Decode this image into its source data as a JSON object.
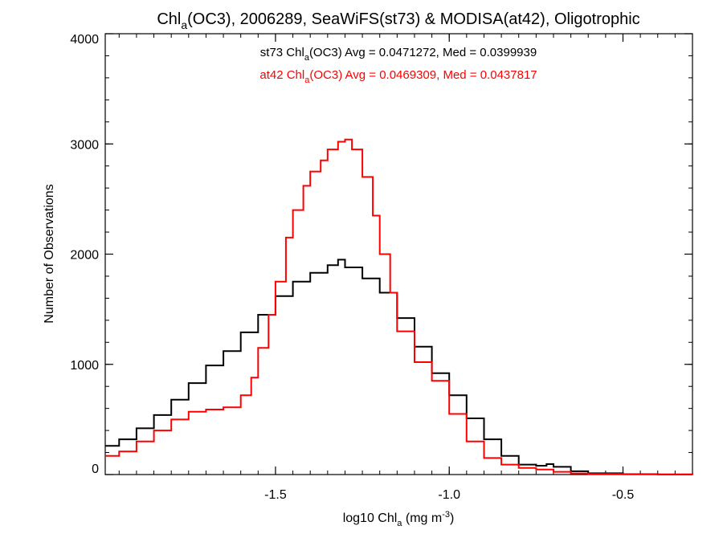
{
  "chart_data": {
    "type": "line",
    "step": true,
    "title": {
      "prefix": "Chl",
      "sub": "a",
      "rest": "(OC3), 2006289, SeaWiFS(st73) & MODISA(at42), Oligotrophic"
    },
    "xlabel": {
      "prefix": "log10 Chl",
      "sub": "a",
      "mid": " (mg m",
      "sup": "-3",
      "end": ")"
    },
    "ylabel": "Number of Observations",
    "xlim": [
      -1.99,
      -0.3
    ],
    "ylim": [
      0,
      4000
    ],
    "xticks": [
      -1.5,
      -1.0,
      -0.5
    ],
    "xtick_labels": [
      "-1.5",
      "-1.0",
      "-0.5"
    ],
    "yticks": [
      0,
      1000,
      2000,
      3000,
      4000
    ],
    "ytick_labels": [
      "0",
      "1000",
      "2000",
      "3000",
      "4000"
    ],
    "x_minor_step": 0.05,
    "y_minor_step": 200,
    "grid": false,
    "legend_position": "top-center",
    "series": [
      {
        "name": "st73",
        "color": "#000000",
        "stats": {
          "prefix": "st73 Chl",
          "sub": "a",
          "rest": "(OC3) Avg = 0.0471272, Med = 0.0399939"
        },
        "points": [
          [
            -1.99,
            260
          ],
          [
            -1.95,
            320
          ],
          [
            -1.9,
            420
          ],
          [
            -1.85,
            540
          ],
          [
            -1.8,
            680
          ],
          [
            -1.75,
            830
          ],
          [
            -1.7,
            990
          ],
          [
            -1.65,
            1120
          ],
          [
            -1.6,
            1290
          ],
          [
            -1.55,
            1450
          ],
          [
            -1.5,
            1620
          ],
          [
            -1.45,
            1750
          ],
          [
            -1.4,
            1830
          ],
          [
            -1.35,
            1900
          ],
          [
            -1.32,
            1950
          ],
          [
            -1.3,
            1880
          ],
          [
            -1.25,
            1780
          ],
          [
            -1.2,
            1650
          ],
          [
            -1.15,
            1420
          ],
          [
            -1.1,
            1160
          ],
          [
            -1.05,
            920
          ],
          [
            -1.0,
            720
          ],
          [
            -0.95,
            510
          ],
          [
            -0.9,
            320
          ],
          [
            -0.85,
            170
          ],
          [
            -0.8,
            90
          ],
          [
            -0.75,
            80
          ],
          [
            -0.72,
            95
          ],
          [
            -0.7,
            70
          ],
          [
            -0.65,
            30
          ],
          [
            -0.6,
            12
          ],
          [
            -0.5,
            4
          ],
          [
            -0.4,
            1
          ],
          [
            -0.3,
            0
          ]
        ]
      },
      {
        "name": "at42",
        "color": "#ff0000",
        "stats": {
          "prefix": "at42 Chl",
          "sub": "a",
          "rest": "(OC3) Avg = 0.0469309, Med = 0.0437817"
        },
        "points": [
          [
            -1.99,
            170
          ],
          [
            -1.95,
            210
          ],
          [
            -1.9,
            300
          ],
          [
            -1.85,
            400
          ],
          [
            -1.8,
            500
          ],
          [
            -1.75,
            570
          ],
          [
            -1.7,
            590
          ],
          [
            -1.65,
            610
          ],
          [
            -1.6,
            720
          ],
          [
            -1.57,
            880
          ],
          [
            -1.55,
            1150
          ],
          [
            -1.52,
            1450
          ],
          [
            -1.5,
            1750
          ],
          [
            -1.47,
            2150
          ],
          [
            -1.45,
            2400
          ],
          [
            -1.42,
            2620
          ],
          [
            -1.4,
            2750
          ],
          [
            -1.37,
            2850
          ],
          [
            -1.35,
            2950
          ],
          [
            -1.32,
            3020
          ],
          [
            -1.3,
            3040
          ],
          [
            -1.28,
            2950
          ],
          [
            -1.25,
            2700
          ],
          [
            -1.22,
            2350
          ],
          [
            -1.2,
            2000
          ],
          [
            -1.17,
            1650
          ],
          [
            -1.15,
            1300
          ],
          [
            -1.1,
            1020
          ],
          [
            -1.05,
            850
          ],
          [
            -1.0,
            550
          ],
          [
            -0.95,
            300
          ],
          [
            -0.9,
            150
          ],
          [
            -0.85,
            90
          ],
          [
            -0.8,
            60
          ],
          [
            -0.75,
            45
          ],
          [
            -0.7,
            25
          ],
          [
            -0.65,
            10
          ],
          [
            -0.6,
            5
          ],
          [
            -0.5,
            2
          ],
          [
            -0.3,
            0
          ]
        ]
      }
    ]
  }
}
